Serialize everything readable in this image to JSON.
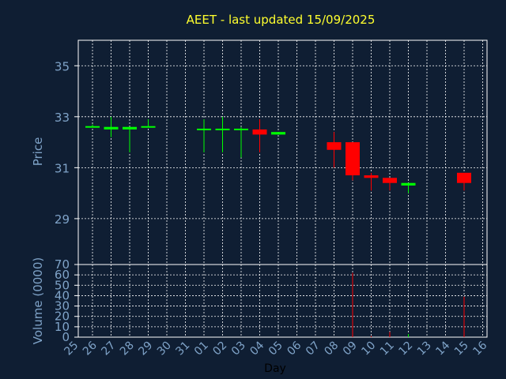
{
  "chart_data": [
    {
      "type": "candlestick",
      "title": "AEET - last updated 15/09/2025",
      "ylabel": "Price",
      "ylim": [
        27.2,
        36.0
      ],
      "yticks": [
        29,
        31,
        33,
        35
      ],
      "grid": true,
      "up_color": "#00ff00",
      "down_color": "#ff0000",
      "categories": [
        "25",
        "26",
        "27",
        "28",
        "29",
        "30",
        "31",
        "01",
        "02",
        "03",
        "04",
        "05",
        "06",
        "07",
        "08",
        "09",
        "10",
        "11",
        "12",
        "13",
        "14",
        "15",
        "16"
      ],
      "candles": [
        {
          "day": "26",
          "open": 32.6,
          "high": 32.7,
          "low": 32.6,
          "close": 32.6
        },
        {
          "day": "27",
          "open": 32.5,
          "high": 33.0,
          "low": 32.2,
          "close": 32.6
        },
        {
          "day": "28",
          "open": 32.5,
          "high": 32.6,
          "low": 31.6,
          "close": 32.6
        },
        {
          "day": "29",
          "open": 32.6,
          "high": 32.9,
          "low": 32.6,
          "close": 32.6
        },
        {
          "day": "01",
          "open": 32.5,
          "high": 32.9,
          "low": 31.6,
          "close": 32.5
        },
        {
          "day": "02",
          "open": 32.5,
          "high": 33.0,
          "low": 31.6,
          "close": 32.5
        },
        {
          "day": "03",
          "open": 32.5,
          "high": 32.6,
          "low": 31.4,
          "close": 32.5
        },
        {
          "day": "04",
          "open": 32.5,
          "high": 32.9,
          "low": 31.6,
          "close": 32.3
        },
        {
          "day": "05",
          "open": 32.3,
          "high": 32.4,
          "low": 32.3,
          "close": 32.4
        },
        {
          "day": "08",
          "open": 32.0,
          "high": 32.4,
          "low": 31.0,
          "close": 31.7
        },
        {
          "day": "09",
          "open": 32.0,
          "high": 32.0,
          "low": 30.5,
          "close": 30.7
        },
        {
          "day": "10",
          "open": 30.7,
          "high": 30.8,
          "low": 30.1,
          "close": 30.6
        },
        {
          "day": "11",
          "open": 30.6,
          "high": 30.6,
          "low": 30.1,
          "close": 30.4
        },
        {
          "day": "12",
          "open": 30.3,
          "high": 30.4,
          "low": 30.0,
          "close": 30.4
        },
        {
          "day": "15",
          "open": 30.8,
          "high": 30.8,
          "low": 30.1,
          "close": 30.4
        }
      ]
    },
    {
      "type": "bar",
      "ylabel": "Volume (0000)",
      "xlabel": "Day",
      "ylim": [
        0,
        70
      ],
      "yticks": [
        0,
        10,
        20,
        30,
        40,
        50,
        60,
        70
      ],
      "grid": true,
      "categories": [
        "25",
        "26",
        "27",
        "28",
        "29",
        "30",
        "31",
        "01",
        "02",
        "03",
        "04",
        "05",
        "06",
        "07",
        "08",
        "09",
        "10",
        "11",
        "12",
        "13",
        "14",
        "15",
        "16"
      ],
      "volumes": [
        {
          "day": "09",
          "value": 62,
          "color": "#ff0000"
        },
        {
          "day": "10",
          "value": 1,
          "color": "#ff0000"
        },
        {
          "day": "11",
          "value": 5,
          "color": "#ff0000"
        },
        {
          "day": "12",
          "value": 3,
          "color": "#00ff00"
        },
        {
          "day": "15",
          "value": 39,
          "color": "#ff0000"
        }
      ]
    }
  ]
}
